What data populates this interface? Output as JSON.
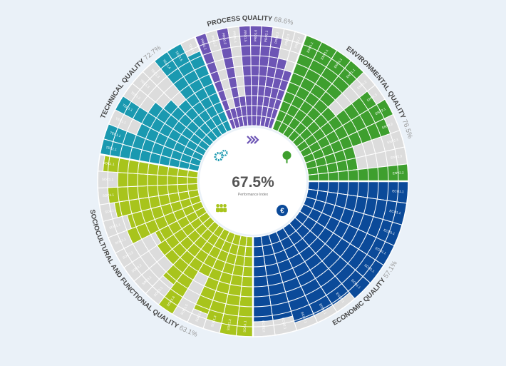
{
  "chart_data": {
    "type": "radial-bar",
    "center": {
      "value_text": "67.5%",
      "label": "Performance Index"
    },
    "scale": {
      "min": 0,
      "max": 100,
      "rings": 10
    },
    "categories": [
      {
        "key": "env",
        "title": "ENVIRONMENTAL QUALITY",
        "score": "76.5%",
        "color": "#3e9f2e",
        "icon": "tree-icon",
        "criteria": [
          {
            "label": "ENV1.1",
            "value": 100
          },
          {
            "label": "ENV1.1",
            "value": 100
          },
          {
            "label": "ENV1.1",
            "value": 100
          },
          {
            "label": "ENV1.1",
            "value": 100
          },
          {
            "label": "ENV1.2",
            "value": 50
          },
          {
            "label": "ENV1.3",
            "value": 90
          },
          {
            "label": "ENV2.1",
            "value": 100
          },
          {
            "label": "ENV2.2",
            "value": 90
          },
          {
            "label": "ENV2.3",
            "value": 50
          },
          {
            "label": "ENV2.3",
            "value": 50
          },
          {
            "label": "ENV2.2",
            "value": 100
          }
        ]
      },
      {
        "key": "eco",
        "title": "ECONOMIC QUALITY",
        "score": "57.1%",
        "color": "#0b4a99",
        "icon": "euro-icon",
        "criteria": [
          {
            "label": "ECO1.1",
            "value": 100
          },
          {
            "label": "ECO1.1",
            "value": 100
          },
          {
            "label": "ECO1.1",
            "value": 100
          },
          {
            "label": "ECO1.1",
            "value": 100
          },
          {
            "label": "ECO1.1",
            "value": 100
          },
          {
            "label": "ECO1.1",
            "value": 100
          },
          {
            "label": "ECO2.1",
            "value": 92
          },
          {
            "label": "ECO2.1",
            "value": 92
          },
          {
            "label": "ECO2.1",
            "value": 92
          },
          {
            "label": "ECO2.1",
            "value": 85
          },
          {
            "label": "ECO2.2",
            "value": 85
          }
        ]
      },
      {
        "key": "soc",
        "title": "SOCIOCULTURAL AND FUNCTIONAL QUALITY",
        "score": "63.1%",
        "color": "#a8c41c",
        "icon": "people-icon",
        "criteria": [
          {
            "label": "SOC1.1",
            "value": 100
          },
          {
            "label": "SOC1.2",
            "value": 100
          },
          {
            "label": "SOC1.3",
            "value": 90
          },
          {
            "label": "SOC1.4",
            "value": 85
          },
          {
            "label": "SOC1.5",
            "value": 50
          },
          {
            "label": "SOC1.6",
            "value": 100
          },
          {
            "label": "SOC2.1",
            "value": 75
          },
          {
            "label": "SOC3.1",
            "value": 60
          },
          {
            "label": "SOC3.2",
            "value": 60
          },
          {
            "label": "SOC3.3",
            "value": 55
          },
          {
            "label": "SOC1.1",
            "value": 80
          },
          {
            "label": "SOC1.1",
            "value": 75
          },
          {
            "label": "SOC1.1",
            "value": 85
          },
          {
            "label": "SOC1.1",
            "value": 90
          },
          {
            "label": "SOC1.1",
            "value": 80
          },
          {
            "label": "SOC1.1",
            "value": 95
          }
        ]
      },
      {
        "key": "tec",
        "title": "TECHNICAL QUALITY",
        "score": "72.7%",
        "color": "#1a99b0",
        "icon": "gears-icon",
        "criteria": [
          {
            "label": "TEC1.1",
            "value": 100
          },
          {
            "label": "TEC1.1",
            "value": 100
          },
          {
            "label": "TEC1.1",
            "value": 70
          },
          {
            "label": "TEC1.1",
            "value": 100
          },
          {
            "label": "TEC1.2",
            "value": 70
          },
          {
            "label": "TEC1.3",
            "value": 60
          },
          {
            "label": "TEC1.3",
            "value": 50
          },
          {
            "label": "TEC1.4",
            "value": 100
          },
          {
            "label": "TEC1.5",
            "value": 100
          },
          {
            "label": "TEC1.6",
            "value": 85
          }
        ]
      },
      {
        "key": "pro",
        "title": "PROCESS QUALITY",
        "score": "68.6%",
        "color": "#6d55b5",
        "icon": "chevrons-icon",
        "criteria": [
          {
            "label": "PRO1.1",
            "value": 100
          },
          {
            "label": "PRO1.2",
            "value": 20
          },
          {
            "label": "PRO1.3",
            "value": 100
          },
          {
            "label": "PRO1.4",
            "value": 30
          },
          {
            "label": "PRO1.5",
            "value": 100
          },
          {
            "label": "PRO1.6",
            "value": 100
          },
          {
            "label": "PRO2.1",
            "value": 100
          },
          {
            "label": "PRO2.2",
            "value": 90
          },
          {
            "label": "PRO2.3",
            "value": 70
          },
          {
            "label": "PRO3.1",
            "value": 60
          }
        ]
      }
    ]
  }
}
